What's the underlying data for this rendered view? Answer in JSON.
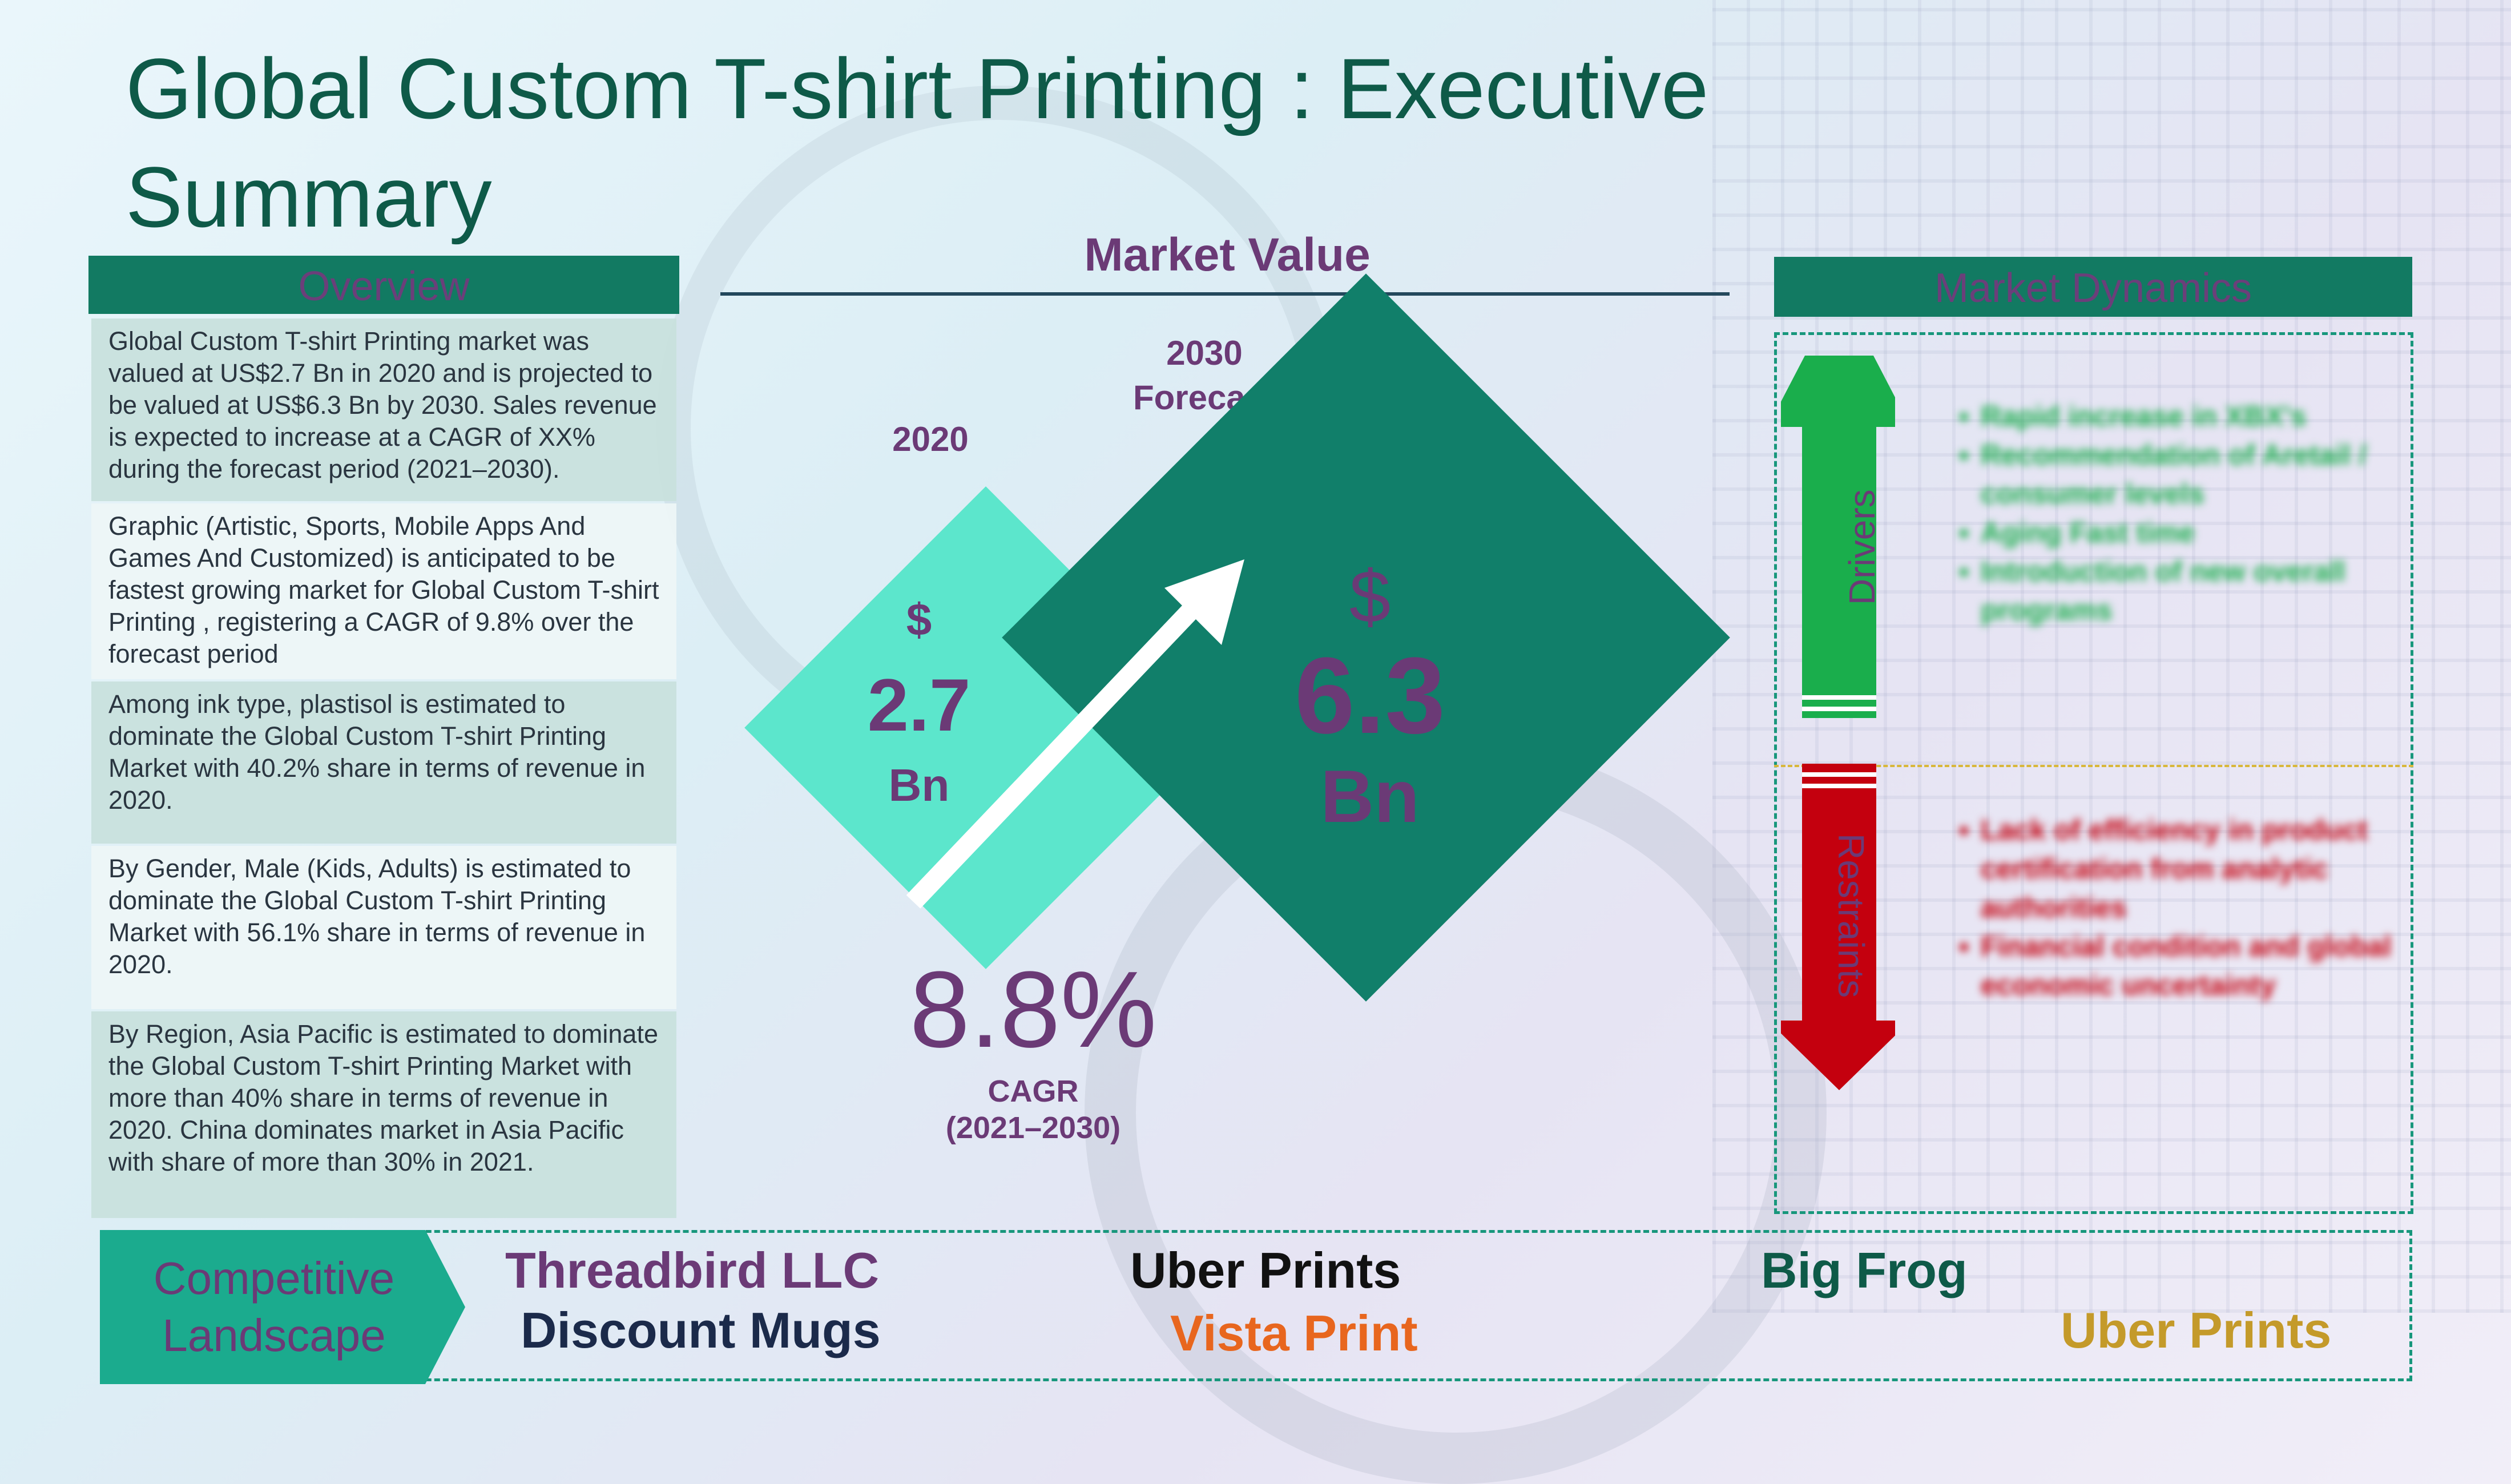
{
  "title": "Global Custom T-shirt Printing : Executive Summary",
  "overview": {
    "header": "Overview",
    "items": [
      "Global Custom T-shirt Printing  market was valued at US$2.7 Bn in 2020 and is projected to be valued at US$6.3 Bn by 2030. Sales revenue is expected to increase at a CAGR of XX% during the forecast period (2021–2030).",
      "Graphic (Artistic, Sports, Mobile Apps And Games And Customized) is anticipated to be fastest growing market for Global Custom T-shirt Printing , registering a CAGR of 9.8% over the forecast period",
      "Among ink type, plastisol is estimated to dominate the Global Custom T-shirt Printing Market with 40.2% share in terms of revenue in 2020.",
      "By Gender, Male (Kids, Adults) is estimated to dominate the Global Custom T-shirt Printing Market with 56.1% share in terms of revenue in 2020.",
      "By Region, Asia Pacific is estimated to dominate the Global Custom T-shirt Printing Market with more than 40% share in terms of revenue in 2020. China dominates market in Asia Pacific with share of more than 30% in 2021."
    ]
  },
  "market_value": {
    "title": "Market Value",
    "year_2020": "2020",
    "year_2030": "2030",
    "year_2030_sub": "Forecast",
    "v2020_currency": "$",
    "v2020_value": "2.7",
    "v2020_unit": "Bn",
    "v2030_currency": "$",
    "v2030_value": "6.3",
    "v2030_unit": "Bn",
    "cagr_value": "8.8%",
    "cagr_label": "CAGR",
    "cagr_period": "(2021–2030)"
  },
  "market_dynamics": {
    "header": "Market Dynamics",
    "drivers_label": "Drivers",
    "restraints_label": "Restraints",
    "drivers": [
      "Rapid increase in XBX's",
      "Recommendation of Aretail / consumer levels",
      "Aging Fast time",
      "Introduction of new overall programs"
    ],
    "restraints": [
      "Lack of efficiency in product certification from analytic authorities",
      "Financial condition and global economic uncertainty"
    ],
    "colors": {
      "drivers": "#1aae4c",
      "restraints": "#c4000e"
    }
  },
  "competitive_landscape": {
    "label_line1": "Competitive",
    "label_line2": "Landscape",
    "companies": [
      {
        "name": "Threadbird LLC",
        "color": "#6b3a76"
      },
      {
        "name": "Uber Prints",
        "color": "#111111"
      },
      {
        "name": "Big Frog",
        "color": "#0e5a48"
      },
      {
        "name": "Discount Mugs",
        "color": "#1b2a4a"
      },
      {
        "name": "Vista Print",
        "color": "#e8661e"
      },
      {
        "name": "Uber Prints",
        "color": "#c49a2a"
      }
    ]
  },
  "colors": {
    "teal_dark": "#117f6a",
    "teal_light": "#5ce6cc",
    "purple": "#6b3a76"
  }
}
